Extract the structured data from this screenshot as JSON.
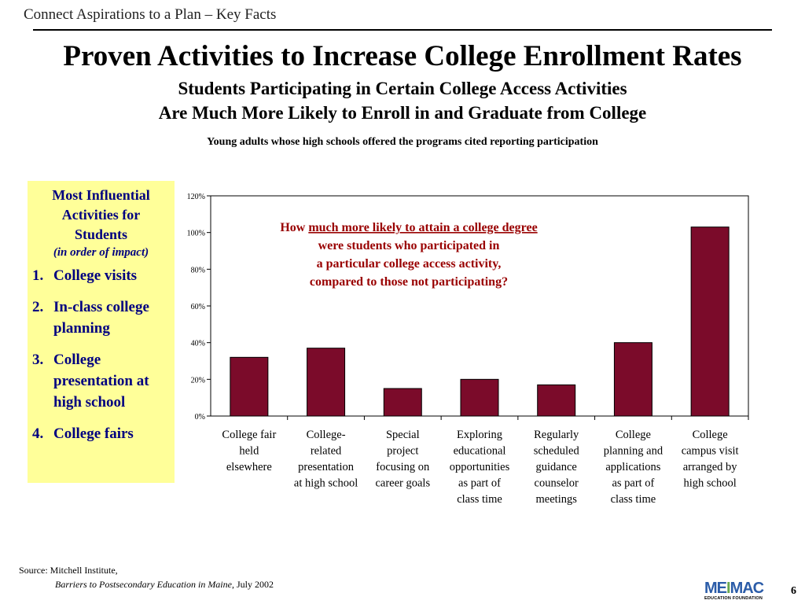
{
  "header": {
    "section": "Connect Aspirations to a Plan – Key Facts",
    "title": "Proven Activities to Increase College Enrollment Rates",
    "subtitle_line1": "Students Participating in Certain College Access Activities",
    "subtitle_line2": "Are Much More Likely to Enroll in and Graduate from College",
    "caption": "Young adults whose high schools offered the programs cited reporting participation"
  },
  "sidebar": {
    "heading": [
      "Most Influential",
      "Activities for",
      "Students"
    ],
    "subheading": "(in order of impact)",
    "items": [
      {
        "num": "1.",
        "label": "College visits"
      },
      {
        "num": "2.",
        "label": "In-class college planning"
      },
      {
        "num": "3.",
        "label": "College presentation at high school"
      },
      {
        "num": "4.",
        "label": "College fairs"
      }
    ]
  },
  "chart_data": {
    "type": "bar",
    "title": "",
    "xlabel": "",
    "ylabel": "",
    "ylim": [
      0,
      120
    ],
    "yticks": [
      "0%",
      "20%",
      "40%",
      "60%",
      "80%",
      "100%",
      "120%"
    ],
    "grid": false,
    "bar_color": "#7b0b2a",
    "categories": [
      [
        "College fair",
        "held",
        "elsewhere"
      ],
      [
        "College-",
        "related",
        "presentation",
        "at high school"
      ],
      [
        "Special",
        "project",
        "focusing on",
        "career goals"
      ],
      [
        "Exploring",
        "educational",
        "opportunities",
        "as part of",
        "class time"
      ],
      [
        "Regularly",
        "scheduled",
        "guidance",
        "counselor",
        "meetings"
      ],
      [
        "College",
        "planning and",
        "applications",
        "as part of",
        "class time"
      ],
      [
        "College",
        "campus visit",
        "arranged by",
        "high school"
      ]
    ],
    "values": [
      32,
      37,
      15,
      20,
      17,
      40,
      103
    ],
    "annotation": {
      "pre": "How ",
      "underlined": "much more likely to attain a college degree",
      "lines": [
        "were students who participated  in",
        "a particular college access activity,",
        "compared to those not participating?"
      ],
      "color": "#990000"
    }
  },
  "source": {
    "prefix": "Source: Mitchell Institute,",
    "ref_title": "Barriers to Postsecondary Education in Maine",
    "ref_date": ", July 2002"
  },
  "logo": {
    "text_a": "ME",
    "text_b": "I",
    "text_c": "MAC",
    "tagline": "EDUCATION FOUNDATION"
  },
  "page_number": "6"
}
